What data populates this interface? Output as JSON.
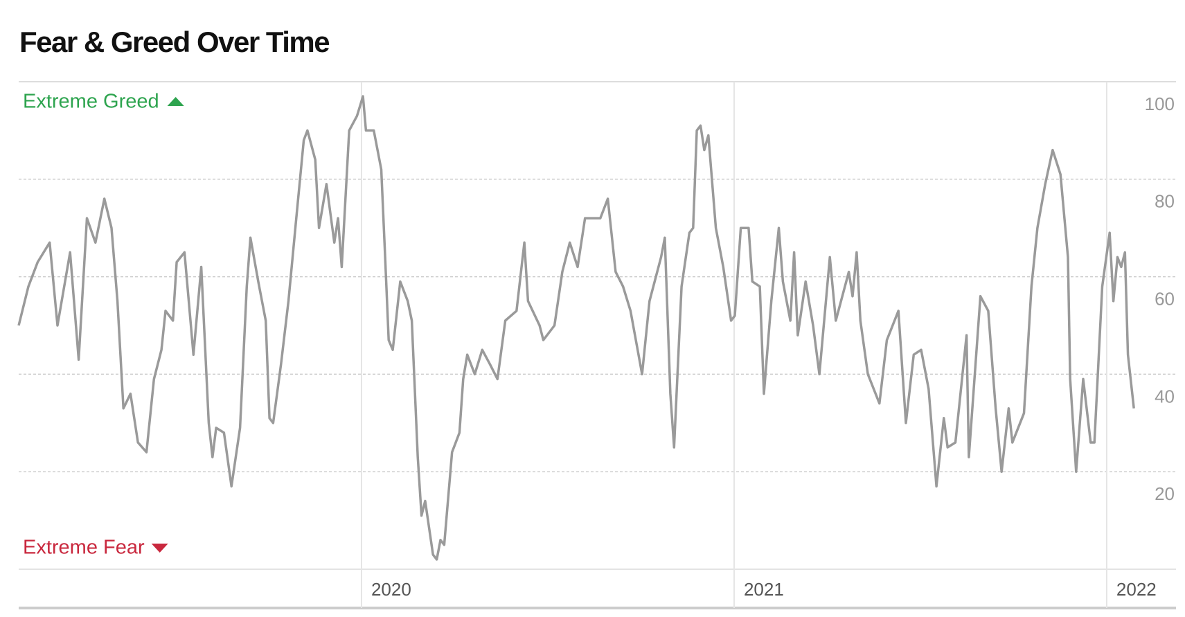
{
  "chart_data": {
    "type": "line",
    "title": "Fear & Greed Over Time",
    "top_label": "Extreme Greed",
    "bottom_label": "Extreme Fear",
    "top_color": "#2ea44f",
    "bottom_color": "#c9283e",
    "xlim": [
      2019.08,
      2022.186
    ],
    "xticks": [
      2020,
      2021,
      2022
    ],
    "ylim": [
      0,
      100
    ],
    "yticks": [
      20,
      40,
      60,
      80,
      100
    ],
    "grid": true,
    "x": [
      2019.08,
      2019.106,
      2019.131,
      2019.163,
      2019.184,
      2019.218,
      2019.241,
      2019.263,
      2019.286,
      2019.31,
      2019.329,
      2019.345,
      2019.361,
      2019.38,
      2019.4,
      2019.423,
      2019.443,
      2019.463,
      2019.474,
      2019.494,
      2019.504,
      2019.525,
      2019.549,
      2019.57,
      2019.59,
      2019.6,
      2019.61,
      2019.631,
      2019.651,
      2019.674,
      2019.692,
      2019.702,
      2019.723,
      2019.743,
      2019.753,
      2019.763,
      2019.784,
      2019.804,
      2019.825,
      2019.845,
      2019.855,
      2019.876,
      2019.886,
      2019.906,
      2019.927,
      2019.937,
      2019.947,
      2019.967,
      2019.988,
      2020.004,
      2020.012,
      2020.033,
      2020.053,
      2020.063,
      2020.073,
      2020.084,
      2020.104,
      2020.124,
      2020.135,
      2020.151,
      2020.161,
      2020.171,
      2020.192,
      2020.202,
      2020.212,
      2020.222,
      2020.243,
      2020.263,
      2020.273,
      2020.284,
      2020.304,
      2020.324,
      2020.345,
      2020.365,
      2020.386,
      2020.416,
      2020.437,
      2020.447,
      2020.478,
      2020.488,
      2020.518,
      2020.539,
      2020.559,
      2020.58,
      2020.6,
      2020.62,
      2020.641,
      2020.661,
      2020.682,
      2020.702,
      2020.722,
      2020.753,
      2020.773,
      2020.804,
      2020.814,
      2020.829,
      2020.839,
      2020.859,
      2020.88,
      2020.89,
      2020.9,
      2020.91,
      2020.92,
      2020.931,
      2020.951,
      2020.971,
      2020.992,
      2021.002,
      2021.018,
      2021.039,
      2021.049,
      2021.069,
      2021.08,
      2021.1,
      2021.12,
      2021.131,
      2021.151,
      2021.161,
      2021.171,
      2021.192,
      2021.212,
      2021.229,
      2021.257,
      2021.273,
      2021.308,
      2021.318,
      2021.329,
      2021.339,
      2021.359,
      2021.39,
      2021.41,
      2021.441,
      2021.461,
      2021.482,
      2021.502,
      2021.522,
      2021.543,
      2021.563,
      2021.573,
      2021.594,
      2021.624,
      2021.63,
      2021.661,
      2021.682,
      2021.702,
      2021.718,
      2021.737,
      2021.747,
      2021.778,
      2021.798,
      2021.814,
      2021.835,
      2021.855,
      2021.876,
      2021.896,
      2021.902,
      2021.918,
      2021.937,
      2021.957,
      2021.967,
      2021.988,
      2022.008,
      2022.018,
      2022.029,
      2022.039,
      2022.049,
      2022.057,
      2022.073
    ],
    "series": [
      {
        "color": "#9a9a9a",
        "values": [
          50,
          58,
          63,
          67,
          50,
          65,
          43,
          72,
          67,
          76,
          70,
          55,
          33,
          36,
          26,
          24,
          39,
          45,
          53,
          51,
          63,
          65,
          44,
          62,
          30,
          23,
          29,
          28,
          17,
          29,
          58,
          68,
          59,
          51,
          31,
          30,
          42,
          55,
          72,
          88,
          90,
          84,
          70,
          79,
          67,
          72,
          62,
          90,
          93,
          97,
          90,
          90,
          82,
          65,
          47,
          45,
          59,
          55,
          51,
          23,
          11,
          14,
          3,
          2,
          6,
          5,
          24,
          28,
          39,
          44,
          40,
          45,
          42,
          39,
          51,
          53,
          67,
          55,
          50,
          47,
          50,
          61,
          67,
          62,
          72,
          72,
          72,
          76,
          61,
          58,
          53,
          40,
          55,
          64,
          68,
          36,
          25,
          58,
          69,
          70,
          90,
          91,
          86,
          89,
          70,
          62,
          51,
          52,
          70,
          70,
          59,
          58,
          36,
          55,
          70,
          59,
          51,
          65,
          48,
          59,
          50,
          40,
          64,
          51,
          61,
          56,
          65,
          51,
          40,
          34,
          47,
          53,
          30,
          44,
          45,
          37,
          17,
          31,
          25,
          26,
          48,
          23,
          56,
          53,
          33,
          20,
          33,
          26,
          32,
          58,
          70,
          79,
          86,
          81,
          64,
          39,
          20,
          39,
          26,
          26,
          58,
          69,
          55,
          64,
          62,
          65,
          44,
          33
        ]
      }
    ]
  }
}
